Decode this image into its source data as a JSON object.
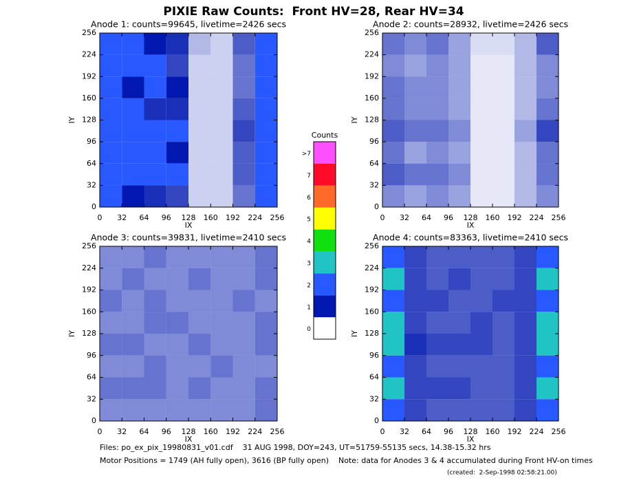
{
  "title": "PIXIE Raw Counts:  Front HV=28, Rear HV=34",
  "chart_data": [
    {
      "type": "heatmap",
      "title": "Anode 1: counts=99645, livetime=2426 secs",
      "xlabel": "IX",
      "ylabel": "IY",
      "xlim": [
        0,
        256
      ],
      "ylim": [
        0,
        256
      ],
      "xticks": [
        0,
        32,
        64,
        96,
        128,
        160,
        192,
        224,
        256
      ],
      "yticks": [
        0,
        32,
        64,
        96,
        128,
        160,
        192,
        224,
        256
      ],
      "values": [
        [
          1.8,
          1.2,
          1.0,
          0.9,
          0.3,
          0.2,
          0.7,
          1.6
        ],
        [
          1.6,
          1.2,
          1.1,
          0.8,
          0.2,
          0.2,
          0.6,
          1.3
        ],
        [
          1.7,
          1.0,
          1.2,
          1.0,
          0.2,
          0.2,
          0.6,
          1.2
        ],
        [
          1.8,
          1.3,
          0.9,
          0.9,
          0.2,
          0.2,
          0.7,
          1.6
        ],
        [
          1.9,
          1.5,
          1.3,
          1.2,
          0.2,
          0.2,
          0.8,
          1.7
        ],
        [
          1.8,
          1.2,
          1.2,
          1.0,
          0.2,
          0.2,
          0.7,
          1.5
        ],
        [
          1.7,
          1.3,
          1.1,
          1.2,
          0.2,
          0.2,
          0.7,
          1.4
        ],
        [
          1.6,
          1.0,
          0.9,
          0.8,
          0.2,
          0.2,
          0.6,
          1.3
        ]
      ]
    },
    {
      "type": "heatmap",
      "title": "Anode 2: counts=28932, livetime=2426 secs",
      "xlabel": "IX",
      "ylabel": "IY",
      "xlim": [
        0,
        256
      ],
      "ylim": [
        0,
        256
      ],
      "xticks": [
        0,
        32,
        64,
        96,
        128,
        160,
        192,
        224,
        256
      ],
      "yticks": [
        0,
        32,
        64,
        96,
        128,
        160,
        192,
        224,
        256
      ],
      "values": [
        [
          0.6,
          0.5,
          0.6,
          0.4,
          0.15,
          0.15,
          0.3,
          0.7
        ],
        [
          0.5,
          0.4,
          0.5,
          0.4,
          0.1,
          0.1,
          0.3,
          0.5
        ],
        [
          0.6,
          0.5,
          0.5,
          0.4,
          0.1,
          0.1,
          0.3,
          0.5
        ],
        [
          0.6,
          0.5,
          0.5,
          0.4,
          0.1,
          0.1,
          0.3,
          0.6
        ],
        [
          0.7,
          0.6,
          0.6,
          0.5,
          0.1,
          0.1,
          0.4,
          0.8
        ],
        [
          0.6,
          0.4,
          0.5,
          0.4,
          0.1,
          0.1,
          0.3,
          0.6
        ],
        [
          0.7,
          0.6,
          0.6,
          0.5,
          0.1,
          0.1,
          0.3,
          0.6
        ],
        [
          0.5,
          0.4,
          0.5,
          0.4,
          0.1,
          0.1,
          0.3,
          0.5
        ]
      ]
    },
    {
      "type": "heatmap",
      "title": "Anode 3: counts=39831, livetime=2410 secs",
      "xlabel": "IX",
      "ylabel": "IY",
      "xlim": [
        0,
        256
      ],
      "ylim": [
        0,
        256
      ],
      "xticks": [
        0,
        32,
        64,
        96,
        128,
        160,
        192,
        224,
        256
      ],
      "yticks": [
        0,
        32,
        64,
        96,
        128,
        160,
        192,
        224,
        256
      ],
      "values": [
        [
          0.5,
          0.5,
          0.6,
          0.5,
          0.5,
          0.5,
          0.5,
          0.6
        ],
        [
          0.5,
          0.6,
          0.5,
          0.5,
          0.6,
          0.5,
          0.5,
          0.6
        ],
        [
          0.6,
          0.5,
          0.6,
          0.5,
          0.5,
          0.5,
          0.6,
          0.5
        ],
        [
          0.5,
          0.5,
          0.6,
          0.6,
          0.5,
          0.5,
          0.5,
          0.6
        ],
        [
          0.6,
          0.6,
          0.5,
          0.5,
          0.6,
          0.5,
          0.5,
          0.6
        ],
        [
          0.5,
          0.5,
          0.6,
          0.5,
          0.5,
          0.6,
          0.5,
          0.5
        ],
        [
          0.6,
          0.6,
          0.6,
          0.5,
          0.6,
          0.5,
          0.5,
          0.6
        ],
        [
          0.5,
          0.5,
          0.5,
          0.5,
          0.5,
          0.5,
          0.5,
          0.6
        ]
      ]
    },
    {
      "type": "heatmap",
      "title": "Anode 4: counts=83363, livetime=2410 secs",
      "xlabel": "IX",
      "ylabel": "IY",
      "xlim": [
        0,
        256
      ],
      "ylim": [
        0,
        256
      ],
      "xticks": [
        0,
        32,
        64,
        96,
        128,
        160,
        192,
        224,
        256
      ],
      "yticks": [
        0,
        32,
        64,
        96,
        128,
        160,
        192,
        224,
        256
      ],
      "values": [
        [
          2.0,
          0.8,
          0.7,
          0.7,
          0.7,
          0.7,
          0.8,
          2.0
        ],
        [
          2.1,
          0.8,
          0.7,
          0.8,
          0.7,
          0.7,
          0.8,
          2.1
        ],
        [
          2.0,
          0.8,
          0.8,
          0.7,
          0.7,
          0.8,
          0.8,
          2.0
        ],
        [
          2.2,
          0.8,
          0.7,
          0.7,
          0.8,
          0.7,
          0.8,
          2.2
        ],
        [
          2.1,
          0.9,
          0.8,
          0.8,
          0.8,
          0.7,
          0.8,
          2.1
        ],
        [
          2.0,
          0.8,
          0.7,
          0.7,
          0.7,
          0.7,
          0.8,
          2.0
        ],
        [
          2.1,
          0.8,
          0.8,
          0.8,
          0.7,
          0.7,
          0.8,
          2.1
        ],
        [
          2.0,
          0.8,
          0.7,
          0.7,
          0.7,
          0.7,
          0.8,
          2.0
        ]
      ]
    }
  ],
  "colorbar": {
    "title": "Counts",
    "labels": [
      "0",
      "1",
      "2",
      "3",
      "4",
      "5",
      "6",
      "7",
      ">7"
    ],
    "colors": [
      "#ffffff",
      "#0018b0",
      "#2858ff",
      "#20c4c4",
      "#10e010",
      "#ffff00",
      "#ff6a28",
      "#ff0a28",
      "#ff50ff"
    ]
  },
  "footer": [
    "Files: po_ex_pix_19980831_v01.cdf    31 AUG 1998, DOY=243, UT=51759-55135 secs, 14.38-15.32 hrs",
    "Motor Positions = 1749 (AH fully open), 3616 (BP fully open)    Note: data for Anodes 3 & 4 accumulated during Front HV-on times",
    "(created:  2-Sep-1998 02:58:21.00)"
  ]
}
